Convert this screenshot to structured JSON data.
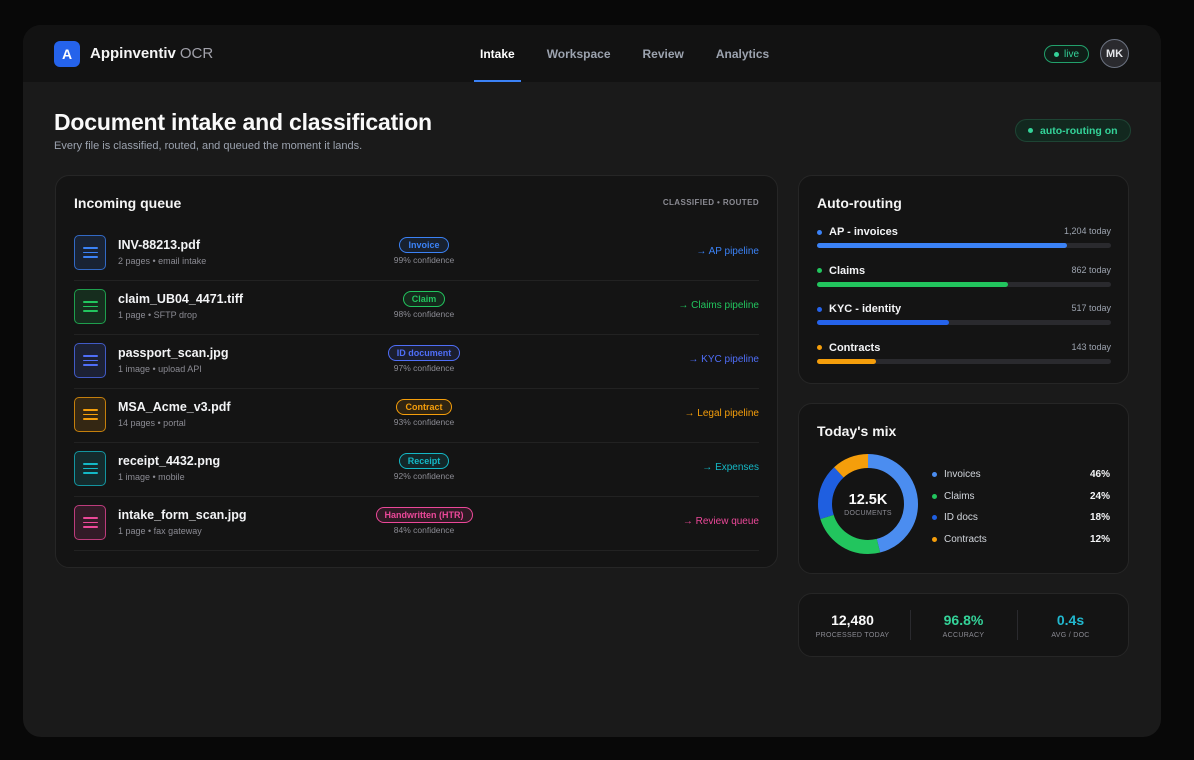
{
  "app": {
    "logo_letter": "A",
    "name": "Appinventiv",
    "name_suffix": "OCR"
  },
  "nav": {
    "tabs": [
      {
        "label": "Intake",
        "active": true
      },
      {
        "label": "Workspace",
        "active": false
      },
      {
        "label": "Review",
        "active": false
      },
      {
        "label": "Analytics",
        "active": false
      }
    ]
  },
  "status": {
    "live_label": "live",
    "live_color": "#34d399"
  },
  "user": {
    "initials": "MK"
  },
  "header": {
    "title": "Document intake and classification",
    "subtitle": "Every file is classified, routed, and queued the moment it lands.",
    "auto_routing_label": "auto-routing on"
  },
  "queue": {
    "title": "Incoming queue",
    "tag": "CLASSIFIED • ROUTED",
    "rows": [
      {
        "file": "INV-88213.pdf",
        "meta": "2 pages • email intake",
        "type": "Invoice",
        "confidence": "99% confidence",
        "route": "→ AP pipeline",
        "color": "#3b82f6"
      },
      {
        "file": "claim_UB04_4471.tiff",
        "meta": "1 page • SFTP drop",
        "type": "Claim",
        "confidence": "98% confidence",
        "route": "→ Claims pipeline",
        "color": "#22c55e"
      },
      {
        "file": "passport_scan.jpg",
        "meta": "1 image • upload API",
        "type": "ID document",
        "confidence": "97% confidence",
        "route": "→ KYC pipeline",
        "color": "#4f6ef7"
      },
      {
        "file": "MSA_Acme_v3.pdf",
        "meta": "14 pages • portal",
        "type": "Contract",
        "confidence": "93% confidence",
        "route": "→ Legal pipeline",
        "color": "#f59e0b"
      },
      {
        "file": "receipt_4432.png",
        "meta": "1 image • mobile",
        "type": "Receipt",
        "confidence": "92% confidence",
        "route": "→ Expenses",
        "color": "#14b8c6"
      },
      {
        "file": "intake_form_scan.jpg",
        "meta": "1 page • fax gateway",
        "type": "Handwritten (HTR)",
        "confidence": "84% confidence",
        "route": "→ Review queue",
        "color": "#ec4899"
      }
    ]
  },
  "routing": {
    "title": "Auto-routing",
    "items": [
      {
        "name": "AP - invoices",
        "count": "1,204 today",
        "fill": 0.85,
        "color": "#3b82f6"
      },
      {
        "name": "Claims",
        "count": "862 today",
        "fill": 0.65,
        "color": "#22c55e"
      },
      {
        "name": "KYC - identity",
        "count": "517 today",
        "fill": 0.45,
        "color": "#2563eb"
      },
      {
        "name": "Contracts",
        "count": "143 today",
        "fill": 0.2,
        "color": "#f59e0b"
      }
    ]
  },
  "mix": {
    "title": "Today's mix",
    "total": "12.5K",
    "total_label": "DOCUMENTS",
    "segments": [
      {
        "name": "Invoices",
        "pct_label": "46%",
        "value": 46,
        "color": "#4b8df0"
      },
      {
        "name": "Claims",
        "pct_label": "24%",
        "value": 24,
        "color": "#22c55e"
      },
      {
        "name": "ID docs",
        "pct_label": "18%",
        "value": 18,
        "color": "#1f5fe0"
      },
      {
        "name": "Contracts",
        "pct_label": "12%",
        "value": 12,
        "color": "#f59e0b"
      }
    ]
  },
  "stats": [
    {
      "value": "12,480",
      "label": "PROCESSED TODAY",
      "color": "#fafafa"
    },
    {
      "value": "96.8%",
      "label": "ACCURACY",
      "color": "#34d399"
    },
    {
      "value": "0.4s",
      "label": "AVG / DOC",
      "color": "#22b8cf"
    }
  ]
}
